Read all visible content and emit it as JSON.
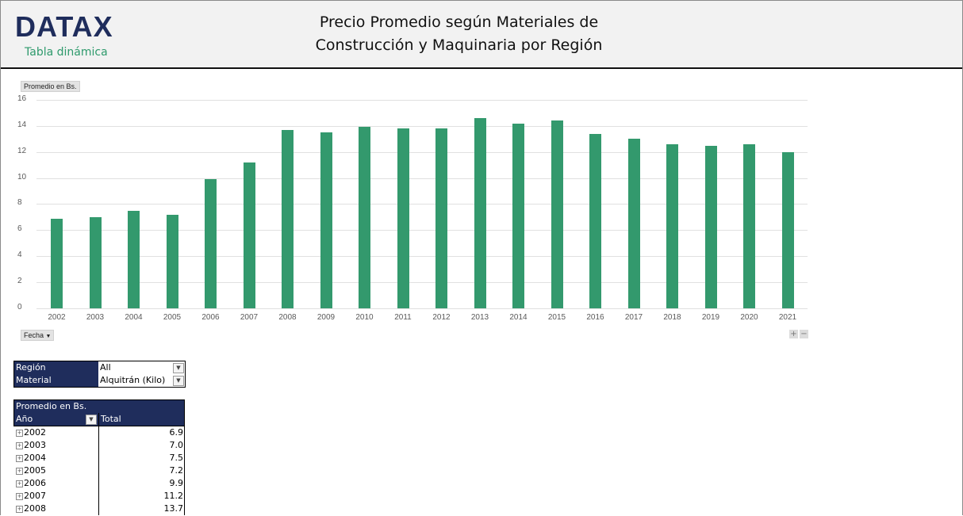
{
  "header": {
    "logo": "DATAX",
    "logo_subtitle": "Tabla dinámica",
    "title_line1": "Precio Promedio según Materiales de",
    "title_line2": "Construcción y Maquinaria por Región"
  },
  "chart_controls": {
    "value_field_button": "Promedio en Bs.",
    "axis_field_button": "Fecha",
    "zoom_in": "+",
    "zoom_out": "−"
  },
  "colors": {
    "bar": "#33996d",
    "header_bg": "#f2f2f2",
    "pivot_header": "#1f2d5c",
    "logo": "#1f2d5c",
    "logo_subtitle": "#2e9a6c"
  },
  "chart_data": {
    "type": "bar",
    "title": "",
    "xlabel": "Fecha",
    "ylabel": "Promedio en Bs.",
    "ylim": [
      0,
      16
    ],
    "yticks": [
      0,
      2,
      4,
      6,
      8,
      10,
      12,
      14,
      16
    ],
    "grid": true,
    "legend": "none",
    "categories": [
      "2002",
      "2003",
      "2004",
      "2005",
      "2006",
      "2007",
      "2008",
      "2009",
      "2010",
      "2011",
      "2012",
      "2013",
      "2014",
      "2015",
      "2016",
      "2017",
      "2018",
      "2019",
      "2020",
      "2021"
    ],
    "values": [
      6.9,
      7.0,
      7.5,
      7.2,
      9.9,
      11.2,
      13.7,
      13.5,
      13.9,
      13.8,
      13.8,
      14.6,
      14.2,
      14.4,
      13.4,
      13.0,
      12.6,
      12.5,
      12.6,
      12.0
    ]
  },
  "filters": [
    {
      "label": "Región",
      "value": "All"
    },
    {
      "label": "Material",
      "value": "Alquitrán (Kilo)"
    }
  ],
  "pivot": {
    "value_header": "Promedio en Bs.",
    "row_header": "Año",
    "total_header": "Total",
    "rows": [
      {
        "year": "2002",
        "total": "6.9"
      },
      {
        "year": "2003",
        "total": "7.0"
      },
      {
        "year": "2004",
        "total": "7.5"
      },
      {
        "year": "2005",
        "total": "7.2"
      },
      {
        "year": "2006",
        "total": "9.9"
      },
      {
        "year": "2007",
        "total": "11.2"
      },
      {
        "year": "2008",
        "total": "13.7"
      }
    ]
  }
}
